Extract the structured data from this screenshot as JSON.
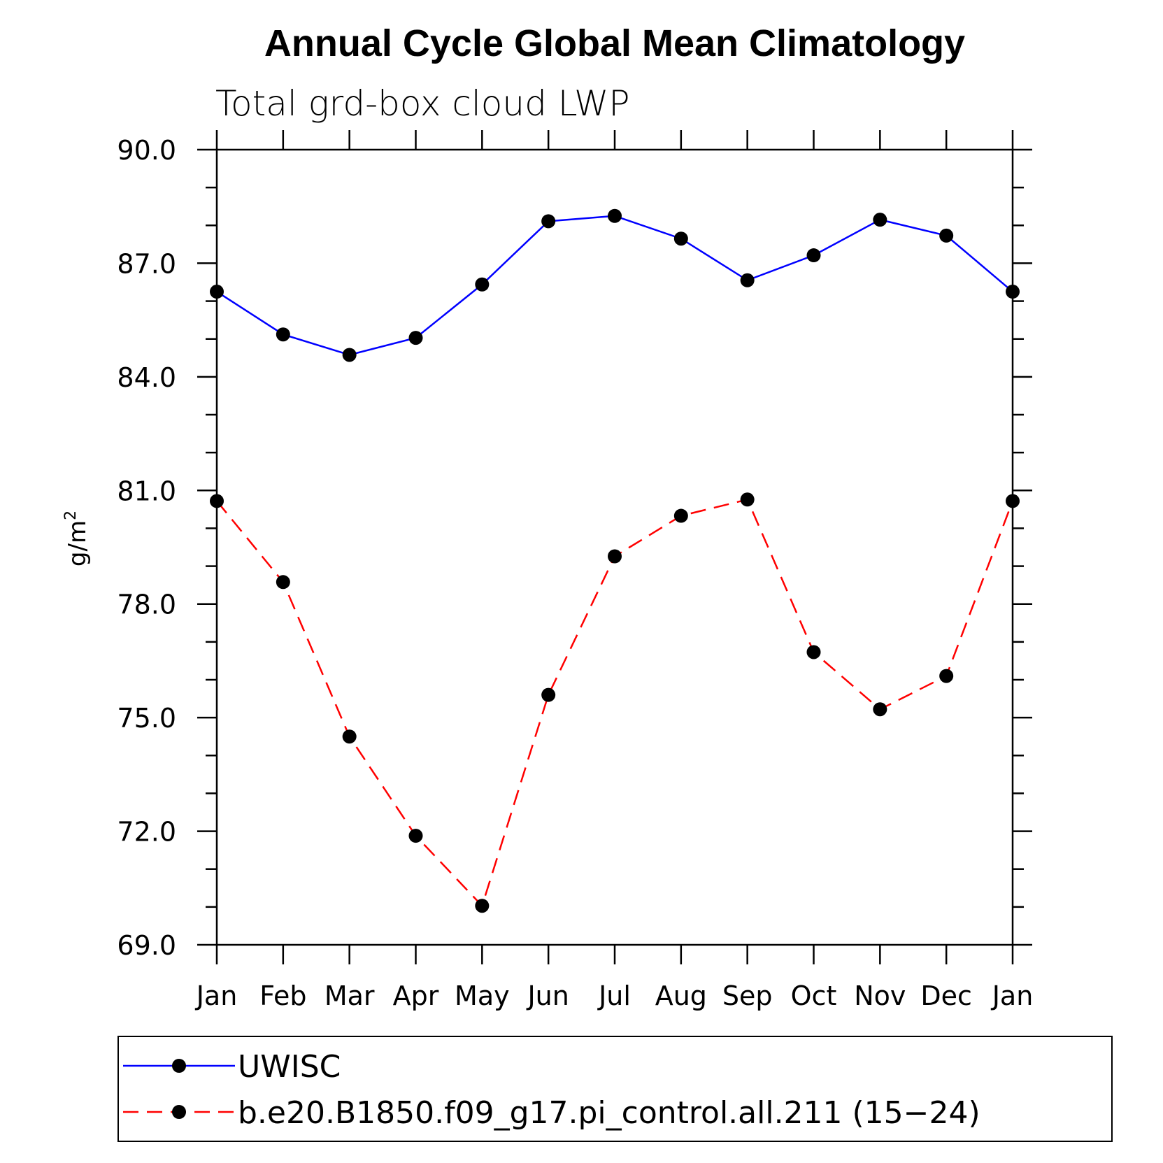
{
  "chart_data": {
    "type": "line",
    "title": "Annual Cycle Global Mean Climatology",
    "subtitle": "Total grd-box cloud LWP",
    "ylabel": "g/m",
    "ylabel_superscript": "2",
    "ylim": [
      69.0,
      90.0
    ],
    "yticks": [
      69.0,
      72.0,
      75.0,
      78.0,
      81.0,
      84.0,
      87.0,
      90.0
    ],
    "ytick_labels": [
      "69.0",
      "72.0",
      "75.0",
      "78.0",
      "81.0",
      "84.0",
      "87.0",
      "90.0"
    ],
    "categories": [
      "Jan",
      "Feb",
      "Mar",
      "Apr",
      "May",
      "Jun",
      "Jul",
      "Aug",
      "Sep",
      "Oct",
      "Nov",
      "Dec",
      "Jan"
    ],
    "grid": false,
    "legend_position": "bottom",
    "series": [
      {
        "name": "UWISC",
        "color": "#0000ff",
        "dash": "solid",
        "marker": "circle",
        "values": [
          86.25,
          85.12,
          84.58,
          85.03,
          86.44,
          88.11,
          88.25,
          87.65,
          86.55,
          87.21,
          88.15,
          87.73,
          86.25
        ]
      },
      {
        "name": "b.e20.B1850.f09_g17.pi_control.all.211 (15−24)",
        "color": "#ff0000",
        "dash": "dashed",
        "marker": "circle",
        "values": [
          80.72,
          78.58,
          74.5,
          71.88,
          70.03,
          75.6,
          79.26,
          80.33,
          80.76,
          76.73,
          75.22,
          76.1,
          80.72
        ]
      }
    ]
  }
}
